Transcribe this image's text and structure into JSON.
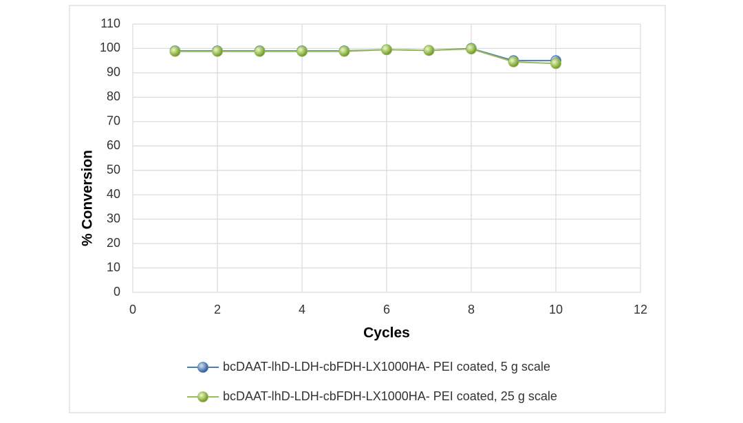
{
  "chart_data": {
    "type": "line",
    "xlabel": "Cycles",
    "ylabel": "% Conversion",
    "x": [
      1,
      2,
      3,
      4,
      5,
      6,
      7,
      8,
      9,
      10
    ],
    "series": [
      {
        "name": "bcDAAT-lhD-LDH-cbFDH-LX1000HA- PEI coated, 5 g scale",
        "color": "#4a7ebb",
        "values": [
          99,
          99,
          99,
          99,
          99,
          99.5,
          99.2,
          100,
          95,
          95
        ]
      },
      {
        "name": "bcDAAT-lhD-LDH-cbFDH-LX1000HA- PEI coated, 25 g scale",
        "color": "#9bbb59",
        "values": [
          98.8,
          98.8,
          98.8,
          98.8,
          98.8,
          99.5,
          99.2,
          99.8,
          94.5,
          93.8
        ]
      }
    ],
    "xlim": [
      0,
      12
    ],
    "xticks": [
      0,
      2,
      4,
      6,
      8,
      10,
      12
    ],
    "ylim": [
      0,
      110
    ],
    "yticks": [
      0,
      10,
      20,
      30,
      40,
      50,
      60,
      70,
      80,
      90,
      100,
      110
    ],
    "grid": true,
    "legend": "bottom"
  }
}
